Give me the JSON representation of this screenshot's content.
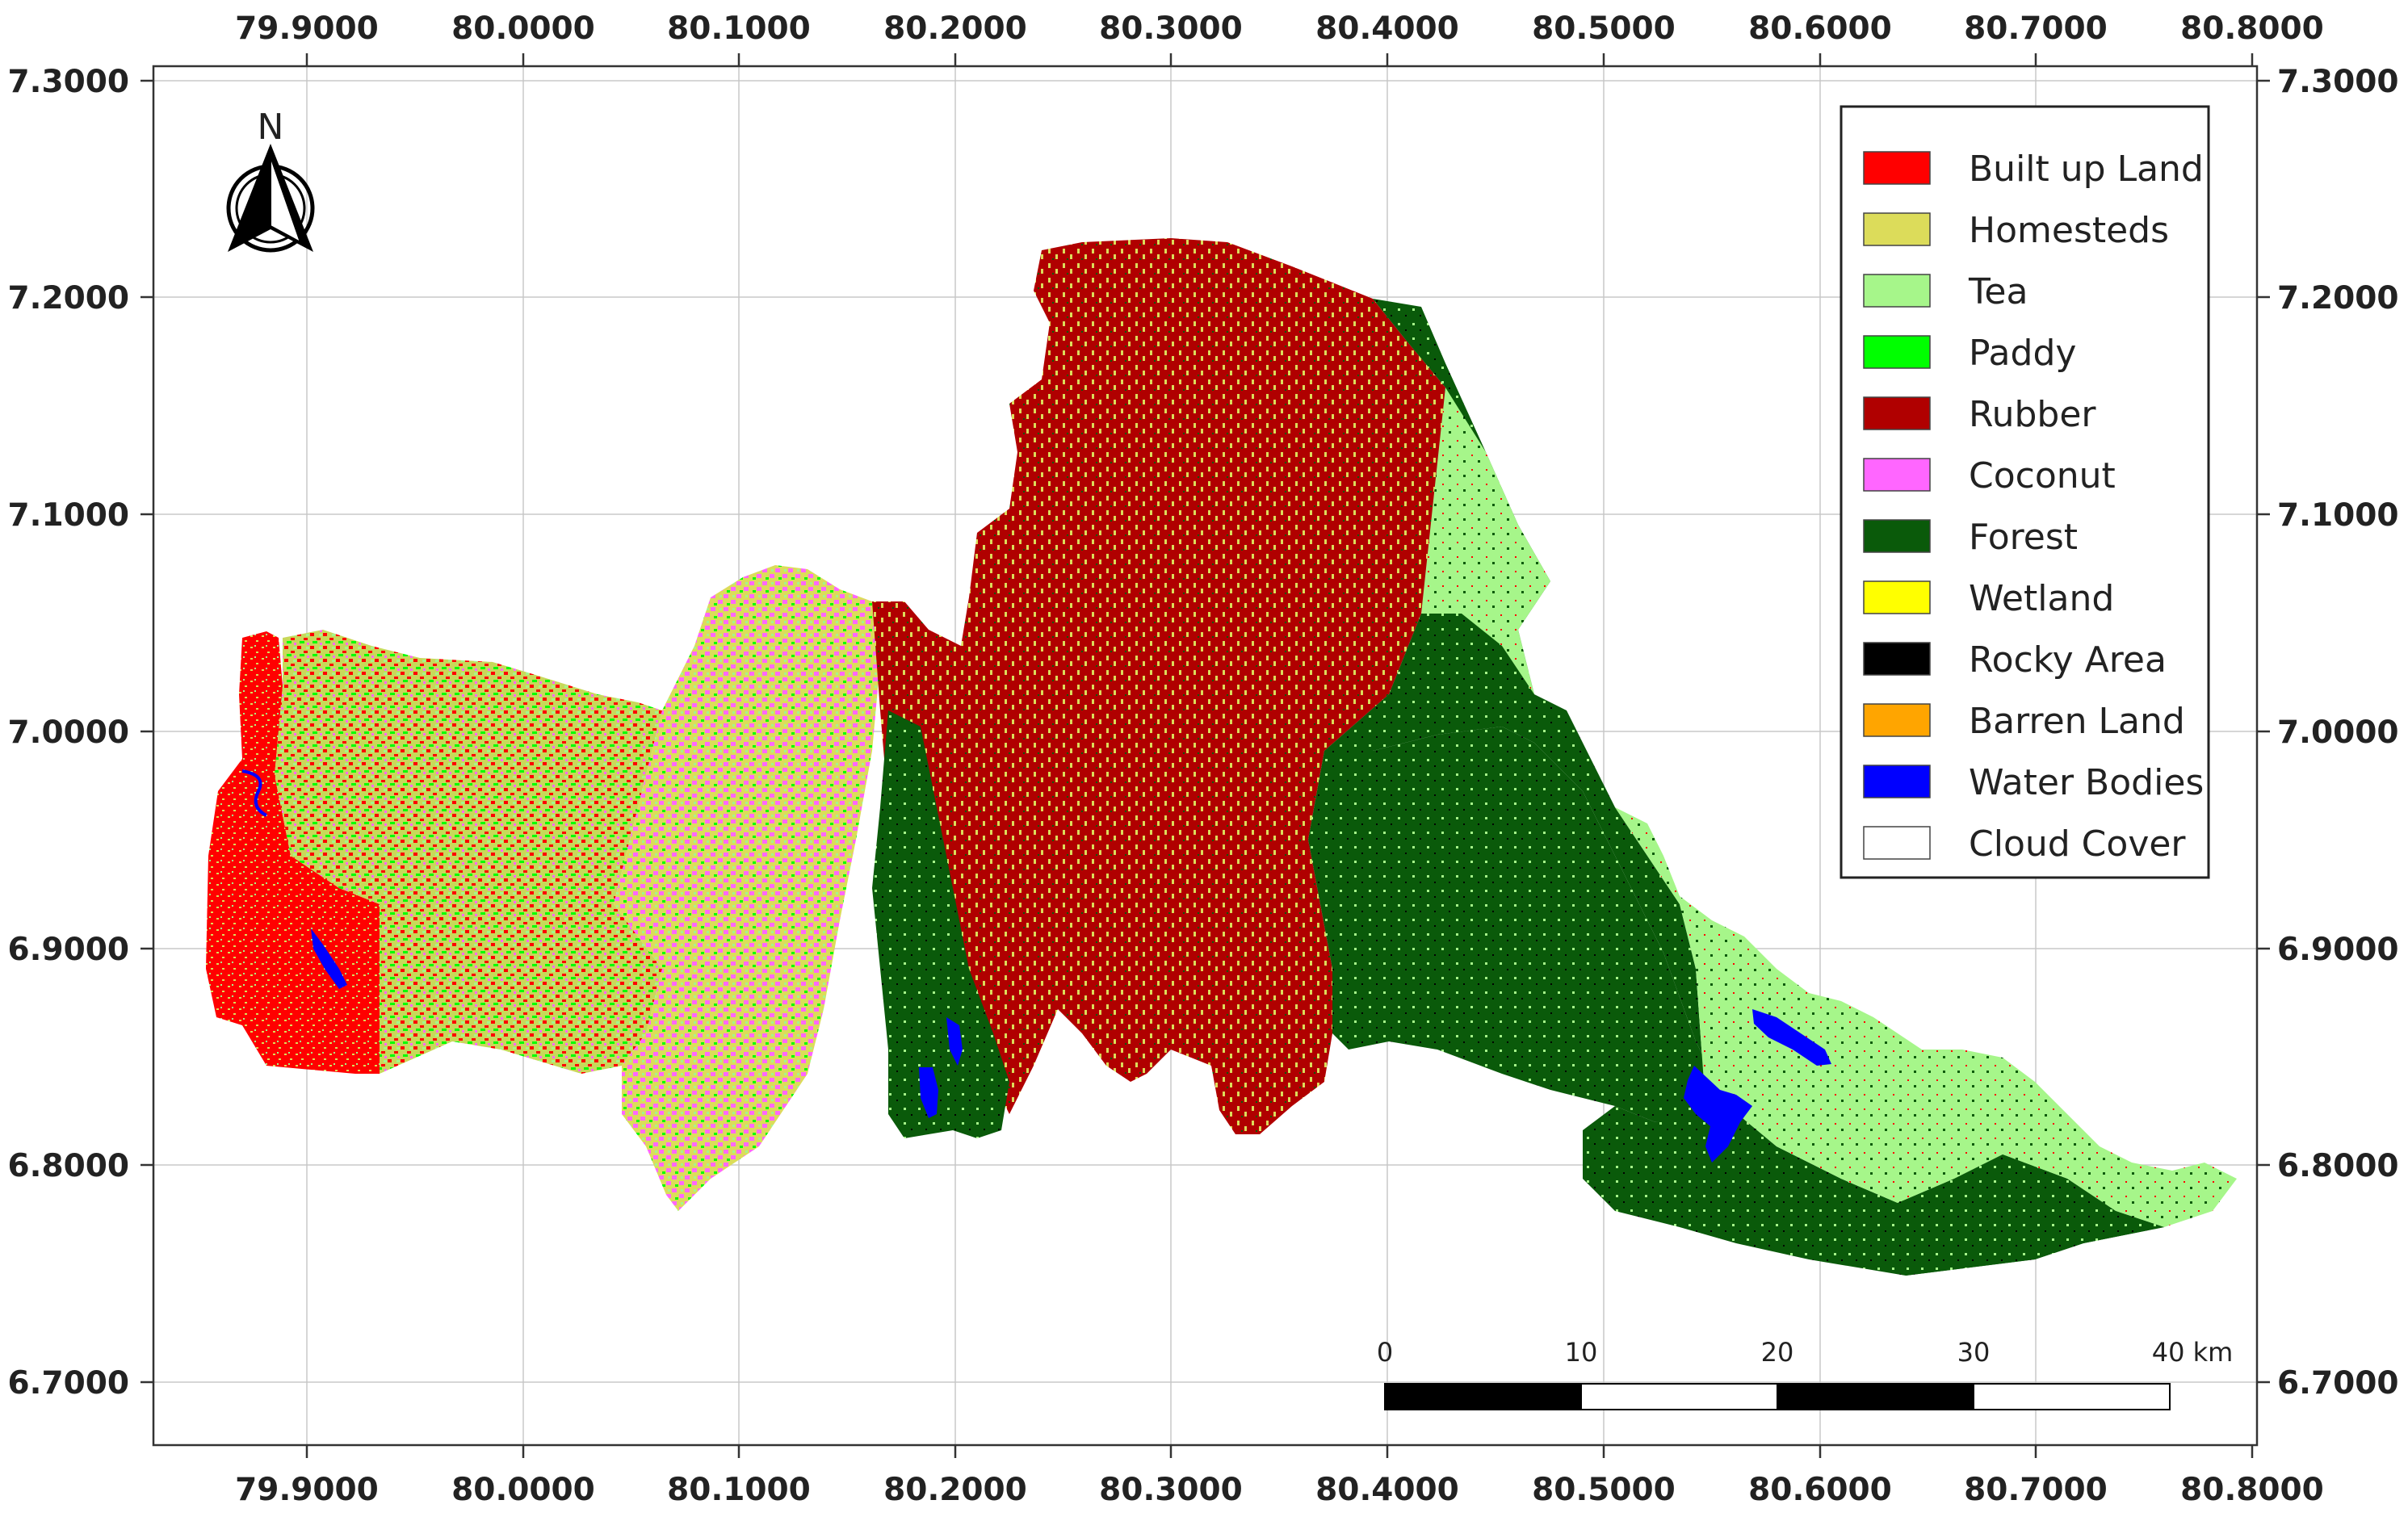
{
  "map": {
    "axes": {
      "x_ticks": [
        "79.9000",
        "80.0000",
        "80.1000",
        "80.2000",
        "80.3000",
        "80.4000",
        "80.5000",
        "80.6000",
        "80.7000",
        "80.8000"
      ],
      "y_ticks": [
        "7.3000",
        "7.2000",
        "7.1000",
        "7.0000",
        "6.9000",
        "6.8000",
        "6.7000"
      ],
      "x_range": [
        79.8,
        80.8
      ],
      "y_range": [
        6.67,
        7.31
      ],
      "grid": true
    },
    "north_arrow": {
      "label": "N"
    },
    "legend": {
      "placement": "top-right",
      "items": [
        {
          "label": "Built up Land",
          "color": "#ff0000"
        },
        {
          "label": "Homesteds",
          "color": "#dcdc5a"
        },
        {
          "label": "Tea",
          "color": "#a6f68a"
        },
        {
          "label": "Paddy",
          "color": "#00ff00"
        },
        {
          "label": "Rubber",
          "color": "#b00000"
        },
        {
          "label": "Coconut",
          "color": "#ff66ff"
        },
        {
          "label": "Forest",
          "color": "#0a5a0a"
        },
        {
          "label": "Wetland",
          "color": "#ffff00"
        },
        {
          "label": "Rocky Area",
          "color": "#000000"
        },
        {
          "label": "Barren Land",
          "color": "#ffa500"
        },
        {
          "label": "Water Bodies",
          "color": "#0000ff"
        },
        {
          "label": "Cloud Cover",
          "color": "#ffffff"
        }
      ]
    },
    "scale_bar": {
      "labels": [
        "0",
        "10",
        "20",
        "30",
        "40 km"
      ]
    }
  }
}
